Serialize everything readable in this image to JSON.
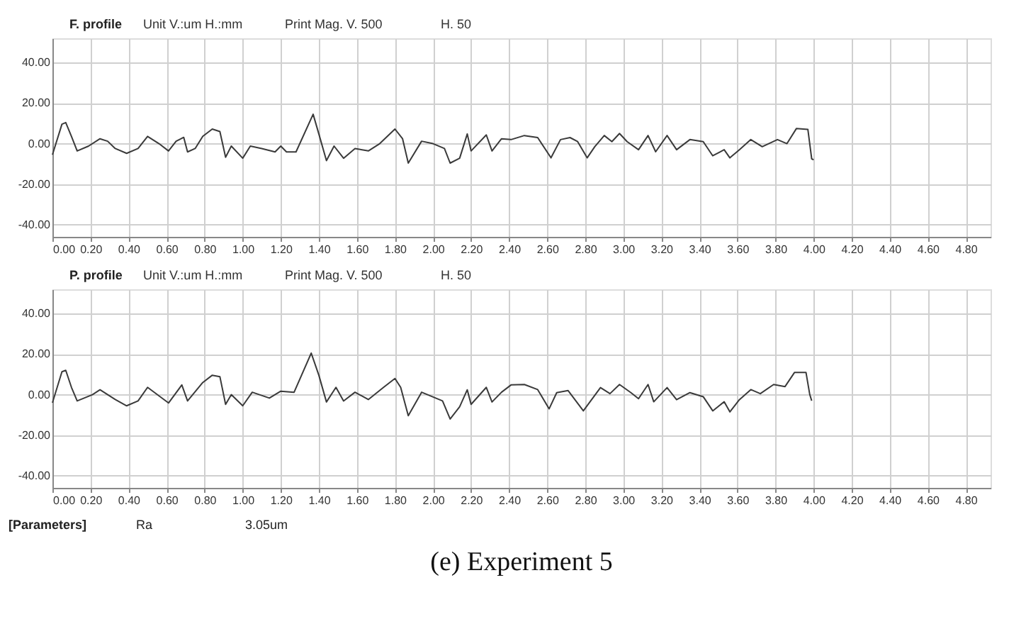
{
  "chart_data": [
    {
      "type": "line",
      "title": "F. profile",
      "annotations": [
        "Unit V.:um H.:mm",
        "Print Mag.  V. 500",
        "H. 50"
      ],
      "x": [
        0,
        0.05,
        0.07,
        0.1,
        0.13,
        0.19,
        0.25,
        0.29,
        0.33,
        0.39,
        0.45,
        0.5,
        0.56,
        0.61,
        0.65,
        0.69,
        0.71,
        0.75,
        0.79,
        0.84,
        0.88,
        0.91,
        0.94,
        1.0,
        1.04,
        1.1,
        1.17,
        1.2,
        1.23,
        1.28,
        1.37,
        1.4,
        1.44,
        1.48,
        1.53,
        1.59,
        1.66,
        1.72,
        1.76,
        1.8,
        1.84,
        1.87,
        1.94,
        2.0,
        2.06,
        2.09,
        2.14,
        2.18,
        2.2,
        2.28,
        2.31,
        2.36,
        2.41,
        2.48,
        2.55,
        2.62,
        2.67,
        2.72,
        2.76,
        2.81,
        2.85,
        2.9,
        2.94,
        2.98,
        3.02,
        3.08,
        3.13,
        3.17,
        3.23,
        3.28,
        3.35,
        3.42,
        3.47,
        3.53,
        3.56,
        3.61,
        3.67,
        3.73,
        3.81,
        3.86,
        3.91,
        3.97,
        3.99,
        4.0
      ],
      "series": [
        {
          "color": "#3a3a3a",
          "values": [
            -5.5,
            9.6,
            10.4,
            3.6,
            -3.6,
            -1.2,
            2.4,
            1.2,
            -2.4,
            -4.8,
            -2.4,
            3.6,
            0,
            -3.6,
            1.2,
            3.1,
            -4.1,
            -2.4,
            3.6,
            7.2,
            6.0,
            -6.7,
            -1.2,
            -7.2,
            -1.2,
            -2.4,
            -4.1,
            -1.2,
            -4.1,
            -4.1,
            14.5,
            4.8,
            -8.4,
            -1.2,
            -7.2,
            -2.4,
            -3.6,
            0,
            3.6,
            7.2,
            2.4,
            -9.6,
            1.2,
            0,
            -2.4,
            -9.6,
            -7.2,
            4.8,
            -3.6,
            4.3,
            -3.6,
            2.4,
            2,
            4,
            3,
            -7,
            2,
            3,
            1,
            -7,
            -1.5,
            4,
            1,
            5,
            1,
            -3,
            4,
            -4,
            4,
            -3,
            2,
            1,
            -6,
            -3,
            -7,
            -3,
            2,
            -1.5,
            2,
            0,
            7.5,
            7,
            -7.5,
            -8
          ]
        }
      ],
      "xlim": [
        0,
        4.93
      ],
      "ylim": [
        -46,
        52
      ],
      "xticks": [
        {
          "value": 0,
          "label": "0.00"
        },
        {
          "value": 0.2,
          "label": "0.20"
        },
        {
          "value": 0.4,
          "label": "0.40"
        },
        {
          "value": 0.6,
          "label": "0.60"
        },
        {
          "value": 0.8,
          "label": "0.80"
        },
        {
          "value": 1.0,
          "label": "1.00"
        },
        {
          "value": 1.2,
          "label": "1.20"
        },
        {
          "value": 1.4,
          "label": "1.40"
        },
        {
          "value": 1.6,
          "label": "1.60"
        },
        {
          "value": 1.8,
          "label": "1.80"
        },
        {
          "value": 2.0,
          "label": "2.00"
        },
        {
          "value": 2.2,
          "label": "2.20"
        },
        {
          "value": 2.4,
          "label": "2.40"
        },
        {
          "value": 2.6,
          "label": "2.60"
        },
        {
          "value": 2.8,
          "label": "2.80"
        },
        {
          "value": 3.0,
          "label": "3.00"
        },
        {
          "value": 3.2,
          "label": "3.20"
        },
        {
          "value": 3.4,
          "label": "3.40"
        },
        {
          "value": 3.6,
          "label": "3.60"
        },
        {
          "value": 3.8,
          "label": "3.80"
        },
        {
          "value": 4.0,
          "label": "4.00"
        },
        {
          "value": 4.2,
          "label": "4.20"
        },
        {
          "value": 4.4,
          "label": "4.40"
        },
        {
          "value": 4.6,
          "label": "4.60"
        },
        {
          "value": 4.8,
          "label": "4.80"
        }
      ],
      "yticks": [
        {
          "value": -40,
          "label": "-40.00"
        },
        {
          "value": -20,
          "label": "-20.00"
        },
        {
          "value": 0,
          "label": "0.00"
        },
        {
          "value": 20,
          "label": "20.00"
        },
        {
          "value": 40,
          "label": "40.00"
        }
      ],
      "grid": true,
      "marker": "none",
      "line_style": "solid"
    },
    {
      "type": "line",
      "title": "P. profile",
      "annotations": [
        "Unit V.:um H.:mm",
        "Print Mag.  V. 500",
        "H. 50",
        "[Parameters]",
        "Ra",
        "3.05um",
        "(e) Experiment 5"
      ],
      "x": [
        0,
        0.05,
        0.07,
        0.1,
        0.13,
        0.21,
        0.25,
        0.33,
        0.39,
        0.45,
        0.5,
        0.61,
        0.68,
        0.71,
        0.79,
        0.84,
        0.88,
        0.91,
        0.94,
        1.0,
        1.05,
        1.14,
        1.2,
        1.27,
        1.36,
        1.4,
        1.44,
        1.49,
        1.53,
        1.59,
        1.66,
        1.74,
        1.8,
        1.83,
        1.87,
        1.94,
        2.05,
        2.09,
        2.14,
        2.18,
        2.2,
        2.28,
        2.31,
        2.36,
        2.41,
        2.48,
        2.55,
        2.61,
        2.65,
        2.71,
        2.79,
        2.88,
        2.93,
        2.98,
        3.04,
        3.08,
        3.13,
        3.16,
        3.23,
        3.28,
        3.35,
        3.42,
        3.47,
        3.53,
        3.56,
        3.61,
        3.67,
        3.72,
        3.79,
        3.85,
        3.9,
        3.96,
        3.98,
        3.99
      ],
      "series": [
        {
          "color": "#3a3a3a",
          "values": [
            -4,
            11.3,
            12,
            3.6,
            -3.1,
            0,
            2.4,
            -2.4,
            -5.5,
            -3.1,
            3.6,
            -4.1,
            4.8,
            -3.1,
            6,
            9.6,
            8.9,
            -4.8,
            0,
            -5.5,
            1.2,
            -1.7,
            1.7,
            1.2,
            20.5,
            9.6,
            -3.6,
            3.6,
            -3.1,
            1.2,
            -2.4,
            3.6,
            8,
            3.6,
            -10.4,
            1.2,
            -3.1,
            -12,
            -6,
            2.4,
            -4.8,
            3.6,
            -3.6,
            1.2,
            4.8,
            5,
            2.5,
            -7,
            1,
            2,
            -8,
            3.5,
            0.5,
            5,
            1,
            -2,
            5,
            -3.5,
            3.5,
            -2.5,
            1,
            -1,
            -8,
            -3.5,
            -8.5,
            -2.5,
            2.5,
            0.5,
            5,
            4,
            11,
            11,
            0,
            -3
          ]
        }
      ],
      "xlim": [
        0,
        4.93
      ],
      "ylim": [
        -46,
        52
      ],
      "xticks": [
        {
          "value": 0,
          "label": "0.00"
        },
        {
          "value": 0.2,
          "label": "0.20"
        },
        {
          "value": 0.4,
          "label": "0.40"
        },
        {
          "value": 0.6,
          "label": "0.60"
        },
        {
          "value": 0.8,
          "label": "0.80"
        },
        {
          "value": 1.0,
          "label": "1.00"
        },
        {
          "value": 1.2,
          "label": "1.20"
        },
        {
          "value": 1.4,
          "label": "1.40"
        },
        {
          "value": 1.6,
          "label": "1.60"
        },
        {
          "value": 1.8,
          "label": "1.80"
        },
        {
          "value": 2.0,
          "label": "2.00"
        },
        {
          "value": 2.2,
          "label": "2.20"
        },
        {
          "value": 2.4,
          "label": "2.40"
        },
        {
          "value": 2.6,
          "label": "2.60"
        },
        {
          "value": 2.8,
          "label": "2.80"
        },
        {
          "value": 3.0,
          "label": "3.00"
        },
        {
          "value": 3.2,
          "label": "3.20"
        },
        {
          "value": 3.4,
          "label": "3.40"
        },
        {
          "value": 3.6,
          "label": "3.60"
        },
        {
          "value": 3.8,
          "label": "3.80"
        },
        {
          "value": 4.0,
          "label": "4.00"
        },
        {
          "value": 4.2,
          "label": "4.20"
        },
        {
          "value": 4.4,
          "label": "4.40"
        },
        {
          "value": 4.6,
          "label": "4.60"
        },
        {
          "value": 4.8,
          "label": "4.80"
        }
      ],
      "yticks": [
        {
          "value": -40,
          "label": "-40.00"
        },
        {
          "value": -20,
          "label": "-20.00"
        },
        {
          "value": 0,
          "label": "0.00"
        },
        {
          "value": 20,
          "label": "20.00"
        },
        {
          "value": 40,
          "label": "40.00"
        }
      ],
      "grid": true,
      "marker": "none",
      "line_style": "solid"
    }
  ]
}
